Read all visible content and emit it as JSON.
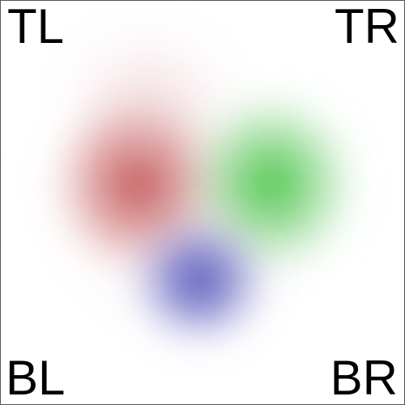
{
  "labels": {
    "top_left": "TL",
    "top_right": "TR",
    "bottom_left": "BL",
    "bottom_right": "BR"
  },
  "blobs": {
    "red": {
      "color": "#c04040"
    },
    "green": {
      "color": "#3fbf3f"
    },
    "blue": {
      "color": "#4646b8"
    }
  }
}
